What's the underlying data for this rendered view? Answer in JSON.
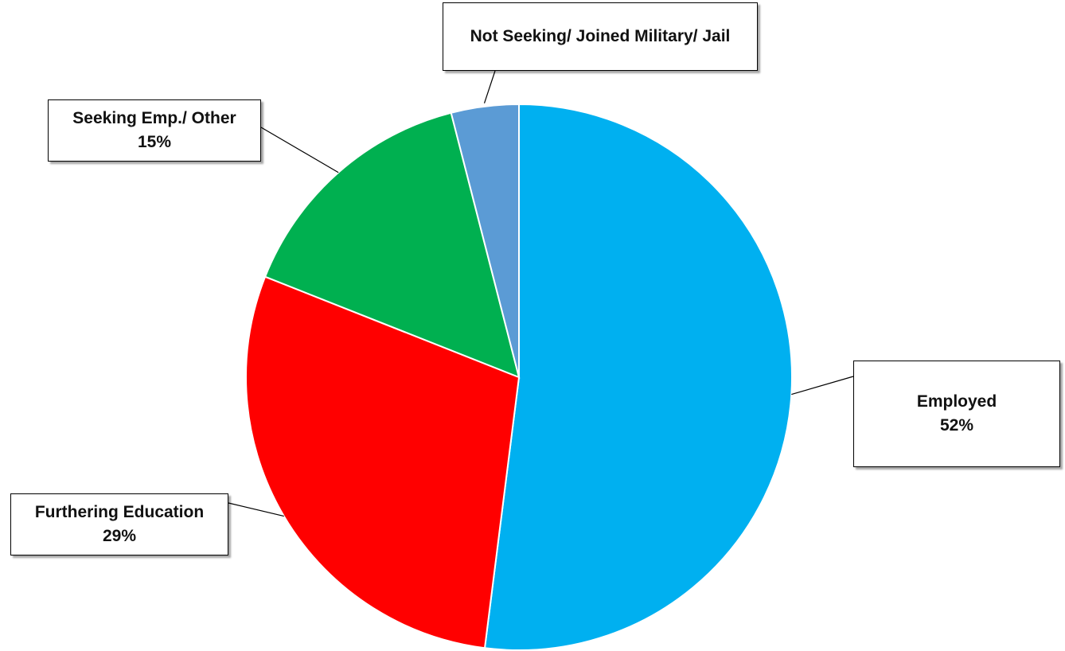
{
  "chart_data": {
    "type": "pie",
    "categories": [
      "Employed",
      "Furthering Education",
      "Seeking Emp./ Other",
      "Not Seeking/ Joined Military/ Jail"
    ],
    "values": [
      52,
      29,
      15,
      4
    ],
    "value_labels": [
      "52%",
      "29%",
      "15%",
      ""
    ],
    "colors": [
      "#00B0F0",
      "#FF0000",
      "#00B050",
      "#5B9BD5"
    ],
    "start_angle_deg": 0,
    "direction": "clockwise",
    "legend": "none",
    "title": ""
  }
}
